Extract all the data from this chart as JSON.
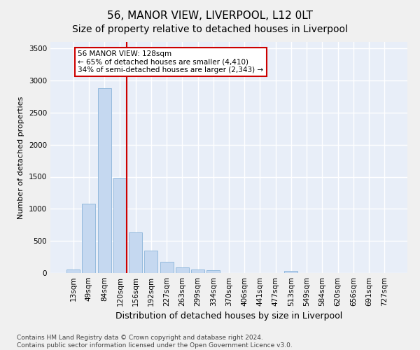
{
  "title": "56, MANOR VIEW, LIVERPOOL, L12 0LT",
  "subtitle": "Size of property relative to detached houses in Liverpool",
  "xlabel": "Distribution of detached houses by size in Liverpool",
  "ylabel": "Number of detached properties",
  "categories": [
    "13sqm",
    "49sqm",
    "84sqm",
    "120sqm",
    "156sqm",
    "192sqm",
    "227sqm",
    "263sqm",
    "299sqm",
    "334sqm",
    "370sqm",
    "406sqm",
    "441sqm",
    "477sqm",
    "513sqm",
    "549sqm",
    "584sqm",
    "620sqm",
    "656sqm",
    "691sqm",
    "727sqm"
  ],
  "values": [
    50,
    1080,
    2880,
    1480,
    630,
    345,
    175,
    90,
    55,
    45,
    0,
    0,
    0,
    0,
    30,
    0,
    0,
    0,
    0,
    0,
    0
  ],
  "bar_color": "#c5d8f0",
  "bar_edgecolor": "#8ab4d9",
  "vline_x_index": 3,
  "vline_color": "#cc0000",
  "annotation_text": "56 MANOR VIEW: 128sqm\n← 65% of detached houses are smaller (4,410)\n34% of semi-detached houses are larger (2,343) →",
  "annotation_box_facecolor": "#ffffff",
  "annotation_box_edgecolor": "#cc0000",
  "ylim": [
    0,
    3600
  ],
  "yticks": [
    0,
    500,
    1000,
    1500,
    2000,
    2500,
    3000,
    3500
  ],
  "footer": "Contains HM Land Registry data © Crown copyright and database right 2024.\nContains public sector information licensed under the Open Government Licence v3.0.",
  "fig_facecolor": "#f0f0f0",
  "plot_facecolor": "#e8eef8",
  "grid_color": "#ffffff",
  "title_fontsize": 11,
  "subtitle_fontsize": 10,
  "xlabel_fontsize": 9,
  "ylabel_fontsize": 8,
  "tick_fontsize": 7.5,
  "annotation_fontsize": 7.5,
  "footer_fontsize": 6.5
}
